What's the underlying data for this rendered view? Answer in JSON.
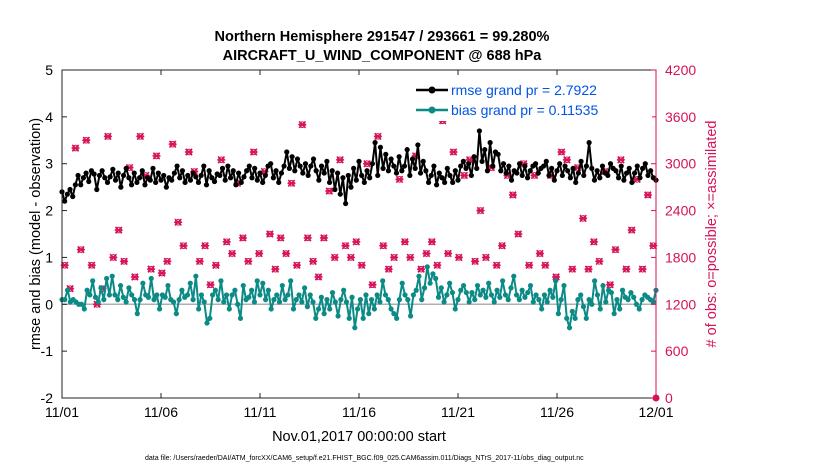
{
  "chart_data": {
    "type": "line",
    "title_line1": "Northern Hemisphere 291547 / 293661 = 99.280%",
    "title_line2": "AIRCRAFT_U_WIND_COMPONENT @ 688 hPa",
    "xlabel": "Nov.01,2017 00:00:00 start",
    "ylabel_left": "rmse and bias (model - observation)",
    "ylabel_right": "# of obs: o=possible; ×=assimilated",
    "footnote": "data file: /Users/raeder/DAI/ATM_forcXX/CAM6_setup/f.e21.FHIST_BGC.f09_025.CAM6assim.011/Diags_NTrS_2017-11/obs_diag_output.nc",
    "x_range_days": [
      0,
      30
    ],
    "x_ticks": [
      0,
      5,
      10,
      15,
      20,
      25,
      30
    ],
    "x_tick_labels": [
      "11/01",
      "11/06",
      "11/11",
      "11/16",
      "11/21",
      "11/26",
      "12/01"
    ],
    "y_left_range": [
      -2,
      5
    ],
    "y_left_ticks": [
      -2,
      -1,
      0,
      1,
      2,
      3,
      4,
      5
    ],
    "y_left_tick_labels": [
      "-2",
      "-1",
      "0",
      "1",
      "2",
      "3",
      "4",
      "5"
    ],
    "y_right_range": [
      0,
      4200
    ],
    "y_right_ticks": [
      0,
      600,
      1200,
      1800,
      2400,
      3000,
      3600,
      4200
    ],
    "y_right_tick_labels": [
      "0",
      "600",
      "1200",
      "1800",
      "2400",
      "3000",
      "3600",
      "4200"
    ],
    "reference_line_y": 0,
    "colors": {
      "rmse": "#000000",
      "bias": "#0b8a86",
      "obs": "#d6125a",
      "legend_text": "#0054e6",
      "zero_line": "#b0b0b0"
    },
    "legend": [
      {
        "label": "rmse grand pr = 2.7922",
        "series": "rmse"
      },
      {
        "label": "bias grand pr = 0.11535",
        "series": "bias"
      }
    ],
    "series": [
      {
        "name": "rmse",
        "axis": "left",
        "values": [
          2.4,
          2.2,
          2.35,
          2.45,
          2.3,
          2.55,
          2.75,
          2.55,
          2.7,
          2.8,
          2.62,
          2.85,
          2.78,
          2.45,
          2.75,
          2.85,
          2.7,
          2.6,
          2.72,
          2.88,
          2.65,
          2.8,
          2.5,
          2.75,
          2.9,
          2.7,
          2.55,
          2.8,
          2.6,
          2.7,
          2.85,
          2.55,
          2.7,
          2.65,
          2.9,
          2.6,
          2.8,
          2.65,
          2.75,
          2.5,
          2.7,
          2.65,
          2.8,
          2.95,
          2.7,
          2.85,
          2.6,
          2.75,
          2.65,
          2.8,
          2.72,
          2.6,
          2.75,
          2.95,
          2.55,
          2.85,
          2.7,
          2.62,
          2.78,
          2.75,
          2.9,
          2.65,
          2.95,
          2.7,
          2.85,
          2.55,
          2.8,
          2.6,
          2.72,
          2.85,
          2.95,
          2.7,
          2.9,
          2.65,
          2.8,
          2.6,
          2.75,
          2.95,
          3.0,
          2.7,
          2.85,
          2.6,
          2.8,
          2.95,
          3.25,
          2.9,
          3.15,
          2.85,
          3.1,
          2.95,
          2.8,
          3.0,
          2.75,
          2.95,
          3.1,
          2.85,
          2.65,
          2.95,
          2.8,
          3.05,
          2.6,
          2.85,
          2.45,
          2.8,
          2.35,
          2.7,
          2.15,
          2.75,
          2.5,
          2.9,
          2.65,
          3.05,
          2.75,
          2.6,
          2.85,
          2.7,
          3.0,
          3.45,
          2.75,
          3.35,
          2.9,
          3.2,
          2.85,
          3.1,
          2.95,
          2.8,
          3.15,
          2.85,
          2.95,
          3.3,
          2.75,
          3.1,
          2.9,
          3.4,
          2.8,
          3.05,
          2.85,
          2.6,
          2.75,
          2.95,
          2.55,
          2.8,
          2.7,
          2.6,
          2.9,
          2.75,
          2.6,
          2.85,
          2.65,
          2.95,
          3.05,
          2.9,
          3.0,
          2.75,
          3.15,
          2.9,
          3.7,
          3.05,
          3.3,
          2.85,
          3.45,
          2.95,
          3.25,
          3.2,
          2.85,
          3.0,
          2.8,
          2.95,
          2.65,
          2.85,
          2.8,
          3.0,
          2.75,
          2.95,
          2.7,
          2.85,
          2.95,
          3.0,
          2.8,
          2.9,
          2.95,
          3.05,
          2.75,
          2.9,
          2.65,
          2.85,
          3.0,
          2.75,
          2.95,
          2.85,
          2.7,
          2.9,
          2.6,
          2.8,
          3.05,
          2.75,
          2.95,
          3.45,
          2.9,
          2.65,
          2.85,
          2.7,
          2.95,
          2.8,
          2.75,
          3.0,
          2.9,
          2.85,
          2.7,
          2.95,
          2.65,
          2.8,
          2.9,
          2.6,
          2.8,
          2.95,
          2.7,
          2.9,
          3.0,
          2.75,
          2.85,
          2.7,
          2.65
        ]
      },
      {
        "name": "bias",
        "axis": "left",
        "values": [
          0.1,
          0.1,
          0.3,
          0.05,
          0.1,
          0.05,
          0.0,
          0.0,
          -0.1,
          0.3,
          0.2,
          0.5,
          0.15,
          0.05,
          0.35,
          0.1,
          0.55,
          0.2,
          0.6,
          0.2,
          0.1,
          0.4,
          0.15,
          0.05,
          0.35,
          0.2,
          0.1,
          -0.2,
          0.1,
          0.45,
          0.2,
          0.15,
          0.55,
          0.1,
          0.2,
          -0.1,
          0.2,
          0.15,
          0.4,
          0.1,
          0.05,
          -0.2,
          0.1,
          0.3,
          0.15,
          0.2,
          0.45,
          0.1,
          0.6,
          -0.1,
          0.2,
          0.05,
          -0.4,
          -0.3,
          0.2,
          0.3,
          0.1,
          0.5,
          0.05,
          0.2,
          -0.1,
          0.2,
          0.3,
          0.0,
          -0.3,
          0.4,
          0.1,
          0.15,
          0.3,
          0.05,
          0.5,
          0.2,
          0.45,
          0.1,
          0.3,
          -0.1,
          0.1,
          0.2,
          0.05,
          0.4,
          0.1,
          0.2,
          0.5,
          -0.1,
          0.1,
          0.2,
          0.05,
          0.35,
          -0.05,
          0.2,
          0.05,
          -0.3,
          -0.1,
          0.15,
          -0.2,
          0.1,
          -0.1,
          0.25,
          0.05,
          -0.25,
          0.1,
          0.3,
          0.05,
          -0.3,
          0.15,
          -0.5,
          -0.1,
          0.1,
          -0.3,
          0.2,
          -0.2,
          0.1,
          -0.1,
          0.2,
          0.05,
          0.5,
          0.2,
          0.1,
          -0.1,
          -0.2,
          -0.3,
          0.1,
          0.45,
          0.2,
          0.1,
          -0.25,
          0.2,
          0.3,
          0.6,
          0.1,
          0.35,
          0.8,
          0.45,
          0.65,
          0.55,
          0.15,
          0.35,
          0.05,
          0.2,
          0.45,
          0.25,
          -0.1,
          0.1,
          0.3,
          0.4,
          0.25,
          0.05,
          0.25,
          0.1,
          0.4,
          0.2,
          0.3,
          0.15,
          0.45,
          0.2,
          0.05,
          0.3,
          0.15,
          0.5,
          0.2,
          0.1,
          0.35,
          0.6,
          0.2,
          0.1,
          0.3,
          0.15,
          0.25,
          0.4,
          0.05,
          0.2,
          0.1,
          -0.1,
          0.2,
          0.05,
          0.3,
          0.15,
          0.5,
          -0.2,
          0.1,
          0.4,
          -0.3,
          -0.5,
          -0.15,
          -0.3,
          0.1,
          0.2,
          -0.05,
          -0.3,
          0.1,
          0.0,
          0.5,
          0.2,
          -0.1,
          0.4,
          0.05,
          0.3,
          0.25,
          -0.2,
          0.1,
          -0.1,
          0.3,
          0.15,
          0.1,
          0.25,
          0.15,
          0.0,
          -0.1,
          0.1,
          0.2,
          0.15,
          0.1,
          0.05,
          0.3
        ]
      },
      {
        "name": "obs_possible",
        "axis": "right",
        "values": [
          1700,
          1400,
          3200,
          1900,
          3300,
          1700,
          1200,
          1400,
          3350,
          1800,
          2150,
          1750,
          2950,
          1550,
          3350,
          2850,
          1650,
          3100,
          1600,
          1750,
          3250,
          2250,
          1950,
          3150,
          2900,
          1750,
          1950,
          1450,
          1700,
          3050,
          2000,
          1850,
          2750,
          2050,
          1750,
          3150,
          1850,
          2900,
          2100,
          1650,
          2050,
          1850,
          2750,
          1700,
          3500,
          2050,
          1750,
          1550,
          2050,
          2650,
          1800,
          3050,
          1950,
          1800,
          2000,
          1700,
          3000,
          1450,
          3350,
          1950,
          1650,
          1800,
          2800,
          2000,
          1800,
          3100,
          1650,
          1850,
          2000,
          1700,
          3550,
          1850,
          3150,
          1800,
          2850,
          3050,
          1750,
          2400,
          1800,
          2950,
          1700,
          1950,
          2850,
          2600,
          2100,
          3000,
          1700,
          2850,
          1850,
          1700,
          2850,
          1550,
          3150,
          3050,
          1650,
          2950,
          2300,
          1650,
          2000,
          1750,
          2900,
          1450,
          1900,
          3050,
          1650,
          2150,
          2800,
          1650,
          2600,
          1950
        ]
      },
      {
        "name": "obs_assimilated",
        "axis": "right",
        "values": [
          1700,
          1400,
          3200,
          1900,
          3300,
          1700,
          1200,
          1400,
          3350,
          1800,
          2150,
          1750,
          2950,
          1550,
          3350,
          2850,
          1650,
          3100,
          1600,
          1750,
          3250,
          2250,
          1950,
          3150,
          2900,
          1750,
          1950,
          1450,
          1700,
          3050,
          2000,
          1850,
          2750,
          2050,
          1750,
          3150,
          1850,
          2900,
          2100,
          1650,
          2050,
          1850,
          2750,
          1700,
          3500,
          2050,
          1750,
          1550,
          2050,
          2650,
          1800,
          3050,
          1950,
          1800,
          2000,
          1700,
          3000,
          1450,
          3350,
          1950,
          1650,
          1800,
          2800,
          2000,
          1800,
          3100,
          1650,
          1850,
          2000,
          1700,
          3550,
          1850,
          3150,
          1800,
          2850,
          3050,
          1750,
          2400,
          1800,
          2950,
          1700,
          1950,
          2850,
          2600,
          2100,
          3000,
          1700,
          2850,
          1850,
          1700,
          2850,
          1550,
          3150,
          3050,
          1650,
          2950,
          2300,
          1650,
          2000,
          1750,
          2900,
          1450,
          1900,
          3050,
          1650,
          2150,
          2800,
          1650,
          2600,
          1950
        ]
      }
    ]
  }
}
